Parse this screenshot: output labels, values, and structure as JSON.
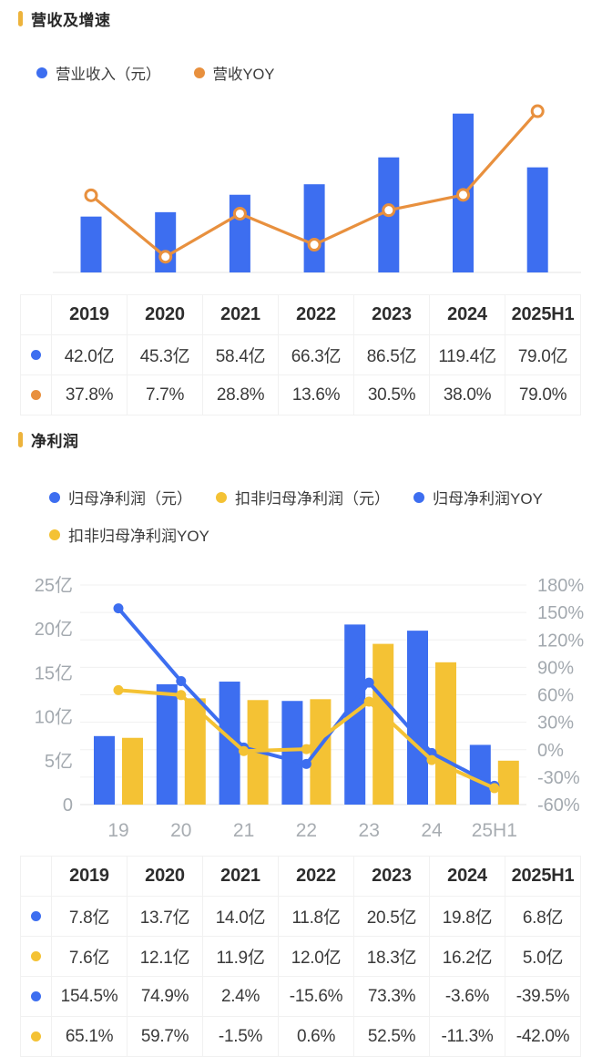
{
  "colors": {
    "blue": "#3D6EF0",
    "orange": "#E8903E",
    "yellow": "#F4C234",
    "gold_marker": "#EDB33C",
    "grid": "#f0f0f0",
    "axis_text": "#a3a9af",
    "table_border": "#f1f1f1"
  },
  "sections": {
    "revenue": {
      "title": "营收及增速",
      "legend": [
        {
          "label": "营业收入（元）",
          "color": "#3D6EF0"
        },
        {
          "label": "营收YOY",
          "color": "#E8903E"
        }
      ],
      "table": {
        "headers": [
          "2019",
          "2020",
          "2021",
          "2022",
          "2023",
          "2024",
          "2025H1"
        ],
        "rows": [
          {
            "dot": "#3D6EF0",
            "name": "营业收入",
            "cells": [
              "42.0亿",
              "45.3亿",
              "58.4亿",
              "66.3亿",
              "86.5亿",
              "119.4亿",
              "79.0亿"
            ]
          },
          {
            "dot": "#E8903E",
            "name": "营收YOY",
            "cells": [
              "37.8%",
              "7.7%",
              "28.8%",
              "13.6%",
              "30.5%",
              "38.0%",
              "79.0%"
            ]
          }
        ]
      }
    },
    "profit": {
      "title": "净利润",
      "legend": [
        {
          "label": "归母净利润（元）",
          "color": "#3D6EF0"
        },
        {
          "label": "扣非归母净利润（元）",
          "color": "#F4C234"
        },
        {
          "label": "归母净利润YOY",
          "color": "#3D6EF0"
        },
        {
          "label": "扣非归母净利润YOY",
          "color": "#F4C234"
        }
      ],
      "table": {
        "headers": [
          "2019",
          "2020",
          "2021",
          "2022",
          "2023",
          "2024",
          "2025H1"
        ],
        "rows": [
          {
            "dot": "#3D6EF0",
            "name": "归母净利润",
            "cells": [
              "7.8亿",
              "13.7亿",
              "14.0亿",
              "11.8亿",
              "20.5亿",
              "19.8亿",
              "6.8亿"
            ]
          },
          {
            "dot": "#F4C234",
            "name": "扣非归母净利润",
            "cells": [
              "7.6亿",
              "12.1亿",
              "11.9亿",
              "12.0亿",
              "18.3亿",
              "16.2亿",
              "5.0亿"
            ]
          },
          {
            "dot": "#3D6EF0",
            "name": "归母净利润YOY",
            "cells": [
              "154.5%",
              "74.9%",
              "2.4%",
              "-15.6%",
              "73.3%",
              "-3.6%",
              "-39.5%"
            ]
          },
          {
            "dot": "#F4C234",
            "name": "扣非归母净利润YOY",
            "cells": [
              "65.1%",
              "59.7%",
              "-1.5%",
              "0.6%",
              "52.5%",
              "-11.3%",
              "-42.0%"
            ]
          }
        ]
      }
    }
  },
  "chart_data": [
    {
      "id": "revenue",
      "type": "bar+line",
      "title": "营收及增速",
      "categories": [
        "2019",
        "2020",
        "2021",
        "2022",
        "2023",
        "2024",
        "2025H1"
      ],
      "series": [
        {
          "name": "营业收入（元）",
          "type": "bar",
          "unit": "亿",
          "color": "#3D6EF0",
          "values": [
            42.0,
            45.3,
            58.4,
            66.3,
            86.5,
            119.4,
            79.0
          ]
        },
        {
          "name": "营收YOY",
          "type": "line",
          "unit": "%",
          "color": "#E8903E",
          "marker": "open-circle",
          "values": [
            37.8,
            7.7,
            28.8,
            13.6,
            30.5,
            38.0,
            79.0
          ]
        }
      ],
      "axes_visible": false,
      "grid": false,
      "legend_position": "top"
    },
    {
      "id": "profit",
      "type": "grouped-bar+line",
      "title": "净利润",
      "categories": [
        "19",
        "20",
        "21",
        "22",
        "23",
        "24",
        "25H1"
      ],
      "series": [
        {
          "name": "归母净利润（元）",
          "type": "bar",
          "unit": "亿",
          "axis": "left",
          "color": "#3D6EF0",
          "values": [
            7.8,
            13.7,
            14.0,
            11.8,
            20.5,
            19.8,
            6.8
          ]
        },
        {
          "name": "扣非归母净利润（元）",
          "type": "bar",
          "unit": "亿",
          "axis": "left",
          "color": "#F4C234",
          "values": [
            7.6,
            12.1,
            11.9,
            12.0,
            18.3,
            16.2,
            5.0
          ]
        },
        {
          "name": "归母净利润YOY",
          "type": "line",
          "unit": "%",
          "axis": "right",
          "color": "#3D6EF0",
          "marker": "filled-circle",
          "values": [
            154.5,
            74.9,
            2.4,
            -15.6,
            73.3,
            -3.6,
            -39.5
          ]
        },
        {
          "name": "扣非归母净利润YOY",
          "type": "line",
          "unit": "%",
          "axis": "right",
          "color": "#F4C234",
          "marker": "filled-circle",
          "values": [
            65.1,
            59.7,
            -1.5,
            0.6,
            52.5,
            -11.3,
            -42.0
          ]
        }
      ],
      "left_axis": {
        "min": 0,
        "max": 25,
        "ticks": [
          {
            "label": "25亿",
            "value": 25
          },
          {
            "label": "20亿",
            "value": 20
          },
          {
            "label": "15亿",
            "value": 15
          },
          {
            "label": "10亿",
            "value": 10
          },
          {
            "label": "5亿",
            "value": 5
          },
          {
            "label": "0",
            "value": 0
          }
        ]
      },
      "right_axis": {
        "min": -60,
        "max": 180,
        "step": 30,
        "ticks": [
          {
            "label": "180%",
            "value": 180
          },
          {
            "label": "150%",
            "value": 150
          },
          {
            "label": "120%",
            "value": 120
          },
          {
            "label": "90%",
            "value": 90
          },
          {
            "label": "60%",
            "value": 60
          },
          {
            "label": "30%",
            "value": 30
          },
          {
            "label": "0%",
            "value": 0
          },
          {
            "label": "-30%",
            "value": -30
          },
          {
            "label": "-60%",
            "value": -60
          }
        ]
      },
      "grid": true,
      "legend_position": "top"
    }
  ]
}
